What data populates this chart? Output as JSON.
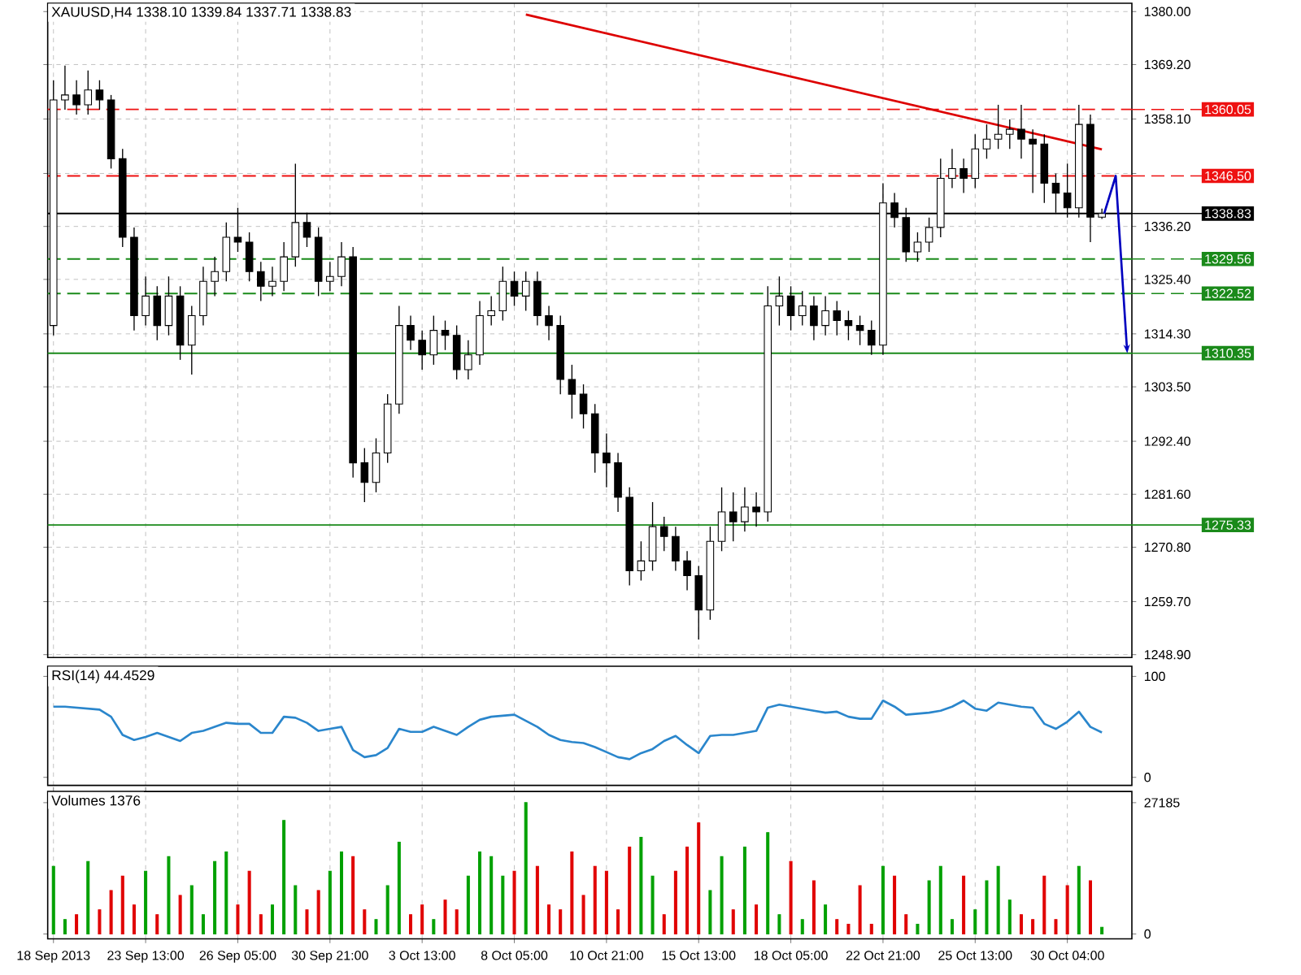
{
  "chart_data": [
    {
      "type": "candlestick",
      "title": "XAUUSD,H4  1338.10 1339.84 1337.71 1338.83",
      "grid": true,
      "tick_labels": "y",
      "categories": [
        null,
        null,
        null,
        null,
        null,
        null,
        null,
        null,
        null,
        null,
        null,
        null,
        null,
        null,
        null,
        null,
        null,
        null,
        null,
        null,
        null,
        null,
        null,
        null,
        null,
        null,
        null,
        null,
        null,
        null,
        null,
        null,
        null,
        null,
        null,
        null,
        null,
        null,
        null,
        null,
        null,
        null,
        null,
        null,
        null,
        null,
        null,
        null,
        null,
        null,
        null,
        null,
        null,
        null,
        null,
        null,
        null,
        null,
        null,
        null,
        null,
        null,
        null,
        null,
        null,
        null,
        null,
        null,
        null,
        null,
        null,
        null,
        null,
        null,
        null,
        null,
        null,
        null,
        null,
        null,
        null,
        null,
        null,
        null,
        null,
        null,
        null,
        null,
        null,
        null,
        null,
        null
      ],
      "ohlc": [
        [
          1316,
          1366,
          1314,
          1362
        ],
        [
          1362,
          1369,
          1360,
          1363
        ],
        [
          1363,
          1366,
          1359,
          1361
        ],
        [
          1361,
          1368,
          1359,
          1364
        ],
        [
          1364,
          1366,
          1360,
          1362
        ],
        [
          1362,
          1363,
          1348,
          1350
        ],
        [
          1350,
          1352,
          1332,
          1334
        ],
        [
          1334,
          1336,
          1315,
          1318
        ],
        [
          1318,
          1326,
          1316,
          1322
        ],
        [
          1322,
          1324,
          1313,
          1316
        ],
        [
          1316,
          1326,
          1314,
          1322
        ],
        [
          1322,
          1324,
          1309,
          1312
        ],
        [
          1312,
          1320,
          1306,
          1318
        ],
        [
          1318,
          1328,
          1316,
          1325
        ],
        [
          1325,
          1330,
          1322,
          1327
        ],
        [
          1327,
          1337,
          1325,
          1334
        ],
        [
          1334,
          1340,
          1331,
          1333
        ],
        [
          1333,
          1335,
          1325,
          1327
        ],
        [
          1327,
          1329,
          1321,
          1324
        ],
        [
          1324,
          1328,
          1322,
          1325
        ],
        [
          1325,
          1333,
          1323,
          1330
        ],
        [
          1330,
          1349,
          1328,
          1337
        ],
        [
          1337,
          1339,
          1332,
          1334
        ],
        [
          1334,
          1336,
          1322,
          1325
        ],
        [
          1325,
          1329,
          1323,
          1326
        ],
        [
          1326,
          1333,
          1324,
          1330
        ],
        [
          1330,
          1332,
          1285,
          1288
        ],
        [
          1288,
          1291,
          1280,
          1284
        ],
        [
          1284,
          1293,
          1282,
          1290
        ],
        [
          1290,
          1302,
          1288,
          1300
        ],
        [
          1300,
          1320,
          1298,
          1316
        ],
        [
          1316,
          1318,
          1311,
          1313
        ],
        [
          1313,
          1315,
          1307,
          1310
        ],
        [
          1310,
          1318,
          1308,
          1315
        ],
        [
          1315,
          1317,
          1311,
          1314
        ],
        [
          1314,
          1316,
          1305,
          1307
        ],
        [
          1307,
          1313,
          1305,
          1310
        ],
        [
          1310,
          1321,
          1308,
          1318
        ],
        [
          1318,
          1322,
          1316,
          1319
        ],
        [
          1319,
          1328,
          1317,
          1325
        ],
        [
          1325,
          1327,
          1320,
          1322
        ],
        [
          1322,
          1327,
          1319,
          1325
        ],
        [
          1325,
          1327,
          1316,
          1318
        ],
        [
          1318,
          1320,
          1313,
          1316
        ],
        [
          1316,
          1318,
          1302,
          1305
        ],
        [
          1305,
          1308,
          1297,
          1302
        ],
        [
          1302,
          1304,
          1295,
          1298
        ],
        [
          1298,
          1300,
          1286,
          1290
        ],
        [
          1290,
          1294,
          1283,
          1288
        ],
        [
          1288,
          1290,
          1278,
          1281
        ],
        [
          1281,
          1283,
          1263,
          1266
        ],
        [
          1266,
          1272,
          1264,
          1268
        ],
        [
          1268,
          1280,
          1266,
          1275
        ],
        [
          1275,
          1277,
          1270,
          1273
        ],
        [
          1273,
          1275,
          1266,
          1268
        ],
        [
          1268,
          1270,
          1262,
          1265
        ],
        [
          1265,
          1267,
          1252,
          1258
        ],
        [
          1258,
          1275,
          1256,
          1272
        ],
        [
          1272,
          1283,
          1270,
          1278
        ],
        [
          1278,
          1282,
          1272,
          1276
        ],
        [
          1276,
          1283,
          1274,
          1279
        ],
        [
          1279,
          1282,
          1275,
          1278
        ],
        [
          1278,
          1324,
          1276,
          1320
        ],
        [
          1320,
          1326,
          1316,
          1322
        ],
        [
          1322,
          1324,
          1315,
          1318
        ],
        [
          1318,
          1323,
          1316,
          1320
        ],
        [
          1320,
          1322,
          1313,
          1316
        ],
        [
          1316,
          1322,
          1314,
          1319
        ],
        [
          1319,
          1321,
          1314,
          1317
        ],
        [
          1317,
          1319,
          1313,
          1316
        ],
        [
          1316,
          1318,
          1312,
          1315
        ],
        [
          1315,
          1317,
          1310,
          1312
        ],
        [
          1312,
          1345,
          1310,
          1341
        ],
        [
          1341,
          1343,
          1336,
          1338
        ],
        [
          1338,
          1340,
          1329,
          1331
        ],
        [
          1331,
          1335,
          1329,
          1333
        ],
        [
          1333,
          1338,
          1331,
          1336
        ],
        [
          1336,
          1350,
          1334,
          1346
        ],
        [
          1346,
          1352,
          1344,
          1348
        ],
        [
          1348,
          1350,
          1343,
          1346
        ],
        [
          1346,
          1355,
          1344,
          1352
        ],
        [
          1352,
          1357,
          1350,
          1354
        ],
        [
          1354,
          1361,
          1352,
          1355
        ],
        [
          1355,
          1358,
          1352,
          1356
        ],
        [
          1356,
          1361,
          1350,
          1354
        ],
        [
          1354,
          1356,
          1343,
          1353
        ],
        [
          1353,
          1355,
          1341,
          1345
        ],
        [
          1345,
          1347,
          1339,
          1343
        ],
        [
          1343,
          1349,
          1338,
          1340
        ],
        [
          1340,
          1361,
          1338,
          1357
        ],
        [
          1357,
          1359,
          1333,
          1338.1
        ],
        [
          1338.1,
          1339.84,
          1337.71,
          1338.83
        ]
      ],
      "series": [
        {
          "type": "line",
          "color": "#dd0000",
          "values": [
            null,
            null,
            null,
            null,
            null,
            null,
            null,
            null,
            null,
            null,
            null,
            null,
            null,
            null,
            null,
            null,
            null,
            null,
            null,
            null,
            null,
            null,
            null,
            null,
            null,
            null,
            null,
            null,
            null,
            null,
            null,
            null,
            null,
            null,
            null,
            null,
            null,
            null,
            null,
            null,
            null,
            1379.4,
            null,
            null,
            null,
            null,
            null,
            null,
            null,
            null,
            null,
            null,
            null,
            null,
            null,
            null,
            null,
            null,
            null,
            null,
            null,
            null,
            null,
            null,
            null,
            null,
            null,
            null,
            null,
            null,
            null,
            null,
            null,
            null,
            null,
            null,
            null,
            null,
            null,
            null,
            null,
            null,
            null,
            null,
            null,
            null,
            null,
            null,
            null,
            null,
            null,
            1351.9
          ]
        }
      ],
      "ylim": [
        1248.3,
        1381.7
      ],
      "yticks": [
        {
          "value": 1380,
          "label": "1380.00"
        },
        {
          "value": 1369.2,
          "label": "1369.20"
        },
        {
          "value": 1358.1,
          "label": "1358.10"
        },
        {
          "value": 1347,
          "label": null
        },
        {
          "value": 1336.2,
          "label": "1336.20"
        },
        {
          "value": 1325.4,
          "label": "1325.40"
        },
        {
          "value": 1314.3,
          "label": "1314.30"
        },
        {
          "value": 1303.5,
          "label": "1303.50"
        },
        {
          "value": 1292.4,
          "label": "1292.40"
        },
        {
          "value": 1281.6,
          "label": "1281.60"
        },
        {
          "value": 1270.8,
          "label": "1270.80"
        },
        {
          "value": 1259.7,
          "label": "1259.70"
        },
        {
          "value": 1248.9,
          "label": "1248.90"
        }
      ],
      "ref_lines": [
        {
          "axis": "y",
          "value": 1360.05,
          "label": "1360.05",
          "color": "#ee1111",
          "line_style": "dashed"
        },
        {
          "axis": "y",
          "value": 1346.5,
          "label": "1346.50",
          "color": "#ee1111",
          "line_style": "dashed"
        },
        {
          "axis": "y",
          "value": 1338.83,
          "label": "1338.83",
          "color": "#000000",
          "line_style": "solid"
        },
        {
          "axis": "y",
          "value": 1329.56,
          "label": "1329.56",
          "color": "#1a8a1a",
          "line_style": "dashed"
        },
        {
          "axis": "y",
          "value": 1322.52,
          "label": "1322.52",
          "color": "#1a8a1a",
          "line_style": "dashed"
        },
        {
          "axis": "y",
          "value": 1310.35,
          "label": "1310.35",
          "color": "#1a8a1a",
          "line_style": "solid"
        },
        {
          "axis": "y",
          "value": 1275.33,
          "label": "1275.33",
          "color": "#1a8a1a",
          "line_style": "solid"
        }
      ]
    },
    {
      "type": "line",
      "title": "RSI(14) 44.4529",
      "grid": "x",
      "tick_labels": "y",
      "categories": [
        null,
        null,
        null,
        null,
        null,
        null,
        null,
        null,
        null,
        null,
        null,
        null,
        null,
        null,
        null,
        null,
        null,
        null,
        null,
        null,
        null,
        null,
        null,
        null,
        null,
        null,
        null,
        null,
        null,
        null,
        null,
        null,
        null,
        null,
        null,
        null,
        null,
        null,
        null,
        null,
        null,
        null,
        null,
        null,
        null,
        null,
        null,
        null,
        null,
        null,
        null,
        null,
        null,
        null,
        null,
        null,
        null,
        null,
        null,
        null,
        null,
        null,
        null,
        null,
        null,
        null,
        null,
        null,
        null,
        null,
        null,
        null,
        null,
        null,
        null,
        null,
        null,
        null,
        null,
        null,
        null,
        null,
        null,
        null,
        null,
        null,
        null,
        null,
        null,
        null,
        null,
        null
      ],
      "series": [
        {
          "color": "#2a86cc",
          "values": [
            70,
            70,
            69,
            68,
            67,
            60,
            42,
            37,
            40,
            44,
            40,
            36,
            44,
            46,
            50,
            54,
            53,
            53,
            44,
            44,
            60,
            59,
            54,
            46,
            48,
            50,
            27,
            20,
            22,
            29,
            48,
            45,
            45,
            50,
            46,
            42,
            50,
            57,
            60,
            61,
            62,
            56,
            50,
            42,
            37,
            35,
            34,
            30,
            25,
            20,
            18,
            24,
            28,
            36,
            41,
            32,
            24,
            41,
            42,
            42,
            44,
            46,
            69,
            72,
            70,
            68,
            66,
            64,
            65,
            60,
            58,
            58,
            76,
            70,
            62,
            63,
            64,
            66,
            70,
            76,
            68,
            66,
            74,
            72,
            70,
            69,
            53,
            48,
            55,
            65,
            50,
            44.45
          ]
        }
      ],
      "ylim": [
        -8,
        110
      ],
      "yticks": [
        0,
        100
      ]
    },
    {
      "type": "bar",
      "title": "Volumes 1376",
      "grid": "x",
      "categories": [
        "18 Sep 2013",
        null,
        null,
        null,
        null,
        null,
        null,
        null,
        "23 Sep 13:00",
        null,
        null,
        null,
        null,
        null,
        null,
        null,
        "26 Sep 05:00",
        null,
        null,
        null,
        null,
        null,
        null,
        null,
        "30 Sep 21:00",
        null,
        null,
        null,
        null,
        null,
        null,
        null,
        "3 Oct 13:00",
        null,
        null,
        null,
        null,
        null,
        null,
        null,
        "8 Oct 05:00",
        null,
        null,
        null,
        null,
        null,
        null,
        null,
        "10 Oct 21:00",
        null,
        null,
        null,
        null,
        null,
        null,
        null,
        "15 Oct 13:00",
        null,
        null,
        null,
        null,
        null,
        null,
        null,
        "18 Oct 05:00",
        null,
        null,
        null,
        null,
        null,
        null,
        null,
        "22 Oct 21:00",
        null,
        null,
        null,
        null,
        null,
        null,
        null,
        "25 Oct 13:00",
        null,
        null,
        null,
        null,
        null,
        null,
        null,
        "30 Oct 04:00",
        null,
        null,
        null
      ],
      "values": [
        14000,
        3000,
        4000,
        15000,
        5000,
        9000,
        12000,
        6000,
        13000,
        4000,
        16000,
        8000,
        10000,
        4000,
        15000,
        17000,
        6000,
        13000,
        4000,
        6000,
        23500,
        10000,
        5000,
        9000,
        13000,
        17000,
        16000,
        5000,
        3000,
        10000,
        19000,
        4000,
        6000,
        3000,
        7000,
        5000,
        12000,
        17000,
        16000,
        12000,
        13000,
        27185,
        14000,
        6000,
        5000,
        17000,
        8000,
        14000,
        13000,
        5000,
        18000,
        20000,
        12000,
        4000,
        13000,
        18000,
        23000,
        9000,
        16000,
        5000,
        18000,
        6000,
        21000,
        4000,
        15000,
        3000,
        11000,
        6000,
        3000,
        2000,
        10000,
        2000,
        14000,
        12000,
        4000,
        2000,
        11000,
        14000,
        3000,
        12000,
        5000,
        11000,
        14000,
        7000,
        4000,
        3000,
        12000,
        3000,
        10000,
        14000,
        11000,
        1376
      ],
      "colors": [
        "#00a000",
        "#00a000",
        "#e00000",
        "#00a000",
        "#e00000",
        "#e00000",
        "#e00000",
        "#e00000",
        "#00a000",
        "#e00000",
        "#00a000",
        "#e00000",
        "#00a000",
        "#00a000",
        "#00a000",
        "#00a000",
        "#e00000",
        "#e00000",
        "#e00000",
        "#00a000",
        "#00a000",
        "#00a000",
        "#e00000",
        "#e00000",
        "#00a000",
        "#00a000",
        "#e00000",
        "#e00000",
        "#00a000",
        "#00a000",
        "#00a000",
        "#e00000",
        "#e00000",
        "#00a000",
        "#e00000",
        "#e00000",
        "#00a000",
        "#00a000",
        "#00a000",
        "#00a000",
        "#e00000",
        "#00a000",
        "#e00000",
        "#e00000",
        "#e00000",
        "#e00000",
        "#e00000",
        "#e00000",
        "#e00000",
        "#e00000",
        "#e00000",
        "#00a000",
        "#00a000",
        "#e00000",
        "#e00000",
        "#e00000",
        "#e00000",
        "#00a000",
        "#00a000",
        "#e00000",
        "#00a000",
        "#e00000",
        "#00a000",
        "#00a000",
        "#e00000",
        "#00a000",
        "#e00000",
        "#00a000",
        "#e00000",
        "#e00000",
        "#e00000",
        "#e00000",
        "#00a000",
        "#e00000",
        "#e00000",
        "#00a000",
        "#00a000",
        "#00a000",
        "#00a000",
        "#e00000",
        "#00a000",
        "#00a000",
        "#00a000",
        "#00a000",
        "#e00000",
        "#e00000",
        "#e00000",
        "#e00000",
        "#e00000",
        "#00a000",
        "#e00000",
        "#00a000"
      ],
      "ylim": [
        -1000,
        29500
      ],
      "yticks": [
        0,
        27185
      ]
    }
  ]
}
